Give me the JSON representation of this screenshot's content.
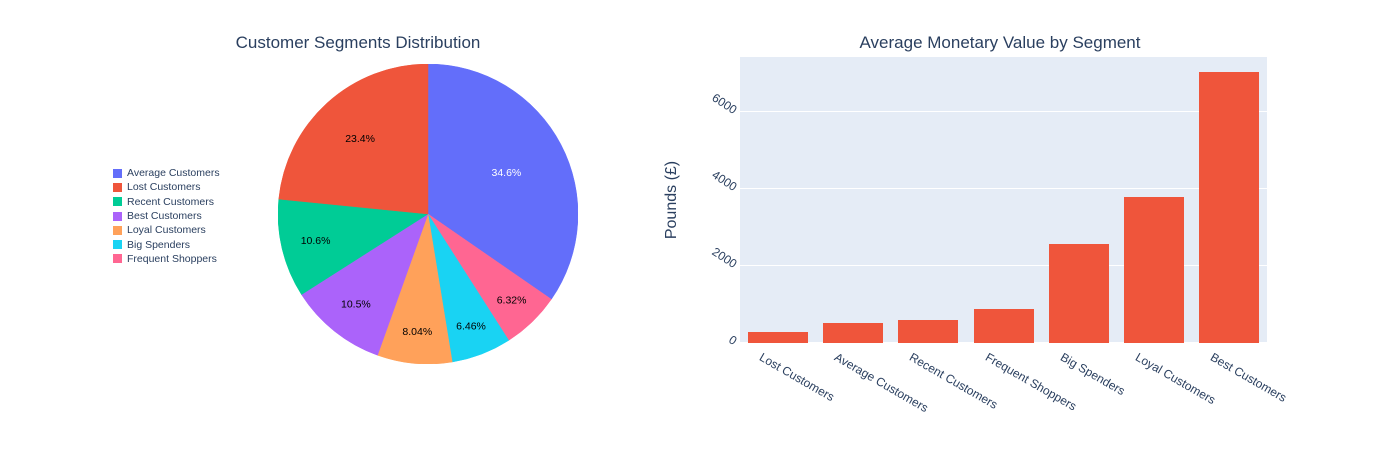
{
  "figure": {
    "background": "#ffffff",
    "text_color": "#2a3f5f"
  },
  "chart_data": [
    {
      "type": "pie",
      "title": "Customer Segments Distribution",
      "legend_position": "left",
      "labels": [
        "Average Customers",
        "Lost Customers",
        "Recent Customers",
        "Best Customers",
        "Loyal Customers",
        "Big Spenders",
        "Frequent Shoppers"
      ],
      "values": [
        34.6,
        23.4,
        10.6,
        10.5,
        8.04,
        6.46,
        6.32
      ],
      "display_percents": [
        "34.6%",
        "23.4%",
        "10.6%",
        "10.5%",
        "8.04%",
        "6.46%",
        "6.32%"
      ],
      "colors": [
        "#636efa",
        "#ef553b",
        "#00cc96",
        "#ab63fa",
        "#ffa15a",
        "#19d3f3",
        "#ff6692"
      ],
      "label_text_colors": [
        "#ffffff",
        "#000000",
        "#000000",
        "#000000",
        "#000000",
        "#000000",
        "#000000"
      ],
      "clockwise_slice_order": [
        0,
        6,
        5,
        4,
        3,
        2,
        1
      ]
    },
    {
      "type": "bar",
      "title": "Average Monetary Value by Segment",
      "xlabel": "",
      "ylabel": "Pounds (£)",
      "categories": [
        "Lost Customers",
        "Average Customers",
        "Recent Customers",
        "Frequent Shoppers",
        "Big Spenders",
        "Loyal Customers",
        "Best Customers"
      ],
      "values": [
        300,
        520,
        590,
        890,
        2570,
        3800,
        7050
      ],
      "bar_color": "#ef553b",
      "plot_bg": "#e5ecf6",
      "grid_color": "#ffffff",
      "grid": "on",
      "yticks": [
        0,
        2000,
        4000,
        6000
      ],
      "ytick_labels": [
        "0",
        "2000",
        "4000",
        "6000"
      ],
      "ylim": [
        0,
        7430
      ],
      "tick_angle": 30,
      "legend": "none"
    }
  ]
}
